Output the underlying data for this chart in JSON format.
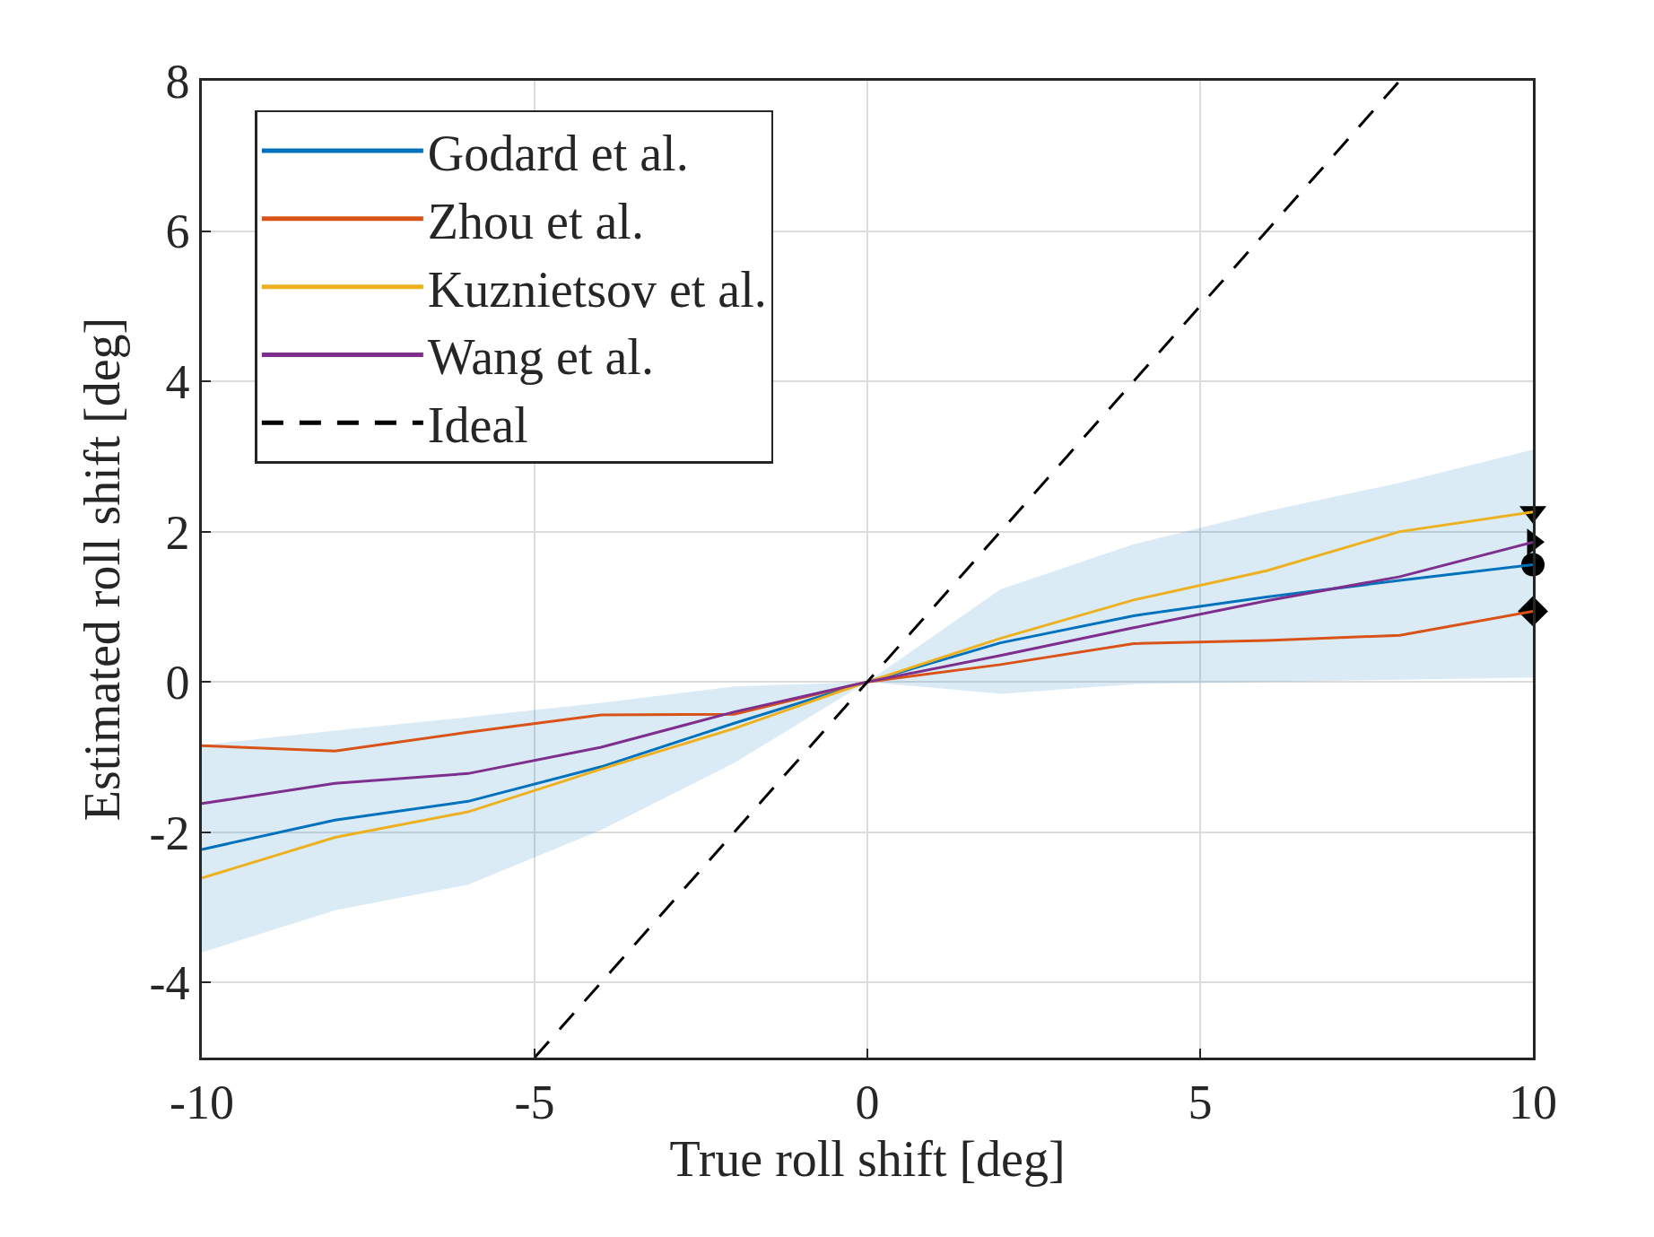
{
  "chart_data": {
    "type": "line",
    "xlabel": "True roll shift [deg]",
    "ylabel": "Estimated roll shift [deg]",
    "x": [
      -10,
      -8,
      -6,
      -4,
      -2,
      0,
      2,
      4,
      6,
      8,
      10
    ],
    "xlim": [
      -10,
      10
    ],
    "xticks": [
      -10,
      -5,
      0,
      5,
      10
    ],
    "ylim": [
      -5,
      8
    ],
    "yticks": [
      -4,
      -2,
      0,
      2,
      4,
      6,
      8
    ],
    "grid": true,
    "legend": "top left",
    "series": [
      {
        "name": "Godard et al.",
        "color": "#0072bd",
        "values": [
          -2.23,
          -1.84,
          -1.59,
          -1.13,
          -0.55,
          0,
          0.52,
          0.88,
          1.13,
          1.35,
          1.56
        ],
        "lower": [
          -3.6,
          -3.04,
          -2.7,
          -1.97,
          -1.08,
          0,
          -0.16,
          -0.03,
          0,
          0.03,
          0.06
        ],
        "upper": [
          -0.84,
          -0.65,
          -0.47,
          -0.28,
          -0.06,
          0,
          1.23,
          1.83,
          2.27,
          2.65,
          3.09
        ]
      },
      {
        "name": "Zhou et al.",
        "color": "#d95319",
        "values": [
          -0.85,
          -0.92,
          -0.67,
          -0.44,
          -0.43,
          0,
          0.23,
          0.51,
          0.55,
          0.62,
          0.94
        ]
      },
      {
        "name": "Kuznietsov et al.",
        "color": "#edb120",
        "values": [
          -2.61,
          -2.07,
          -1.73,
          -1.16,
          -0.62,
          0,
          0.58,
          1.09,
          1.48,
          2.0,
          2.26
        ]
      },
      {
        "name": "Wang et al.",
        "color": "#7e2f8e",
        "values": [
          -1.62,
          -1.35,
          -1.22,
          -0.87,
          -0.4,
          0,
          0.35,
          0.72,
          1.08,
          1.4,
          1.86
        ]
      },
      {
        "type": "scatter",
        "color": "#000000",
        "marker": "circle",
        "x": [
          10
        ],
        "values": [
          1.56
        ]
      },
      {
        "type": "scatter",
        "color": "#000000",
        "marker": "diamond",
        "x": [
          10
        ],
        "values": [
          0.94
        ]
      },
      {
        "type": "scatter",
        "color": "#000000",
        "marker": "triangle-down",
        "x": [
          10
        ],
        "values": [
          2.26
        ]
      },
      {
        "type": "scatter",
        "color": "#000000",
        "marker": "triangle-right",
        "x": [
          10
        ],
        "values": [
          1.86
        ]
      },
      {
        "name": "Ideal",
        "color": "#000000",
        "line_style": "dashed",
        "marker": "none",
        "x": [
          -5,
          8
        ],
        "values": [
          -5,
          8
        ]
      }
    ]
  }
}
